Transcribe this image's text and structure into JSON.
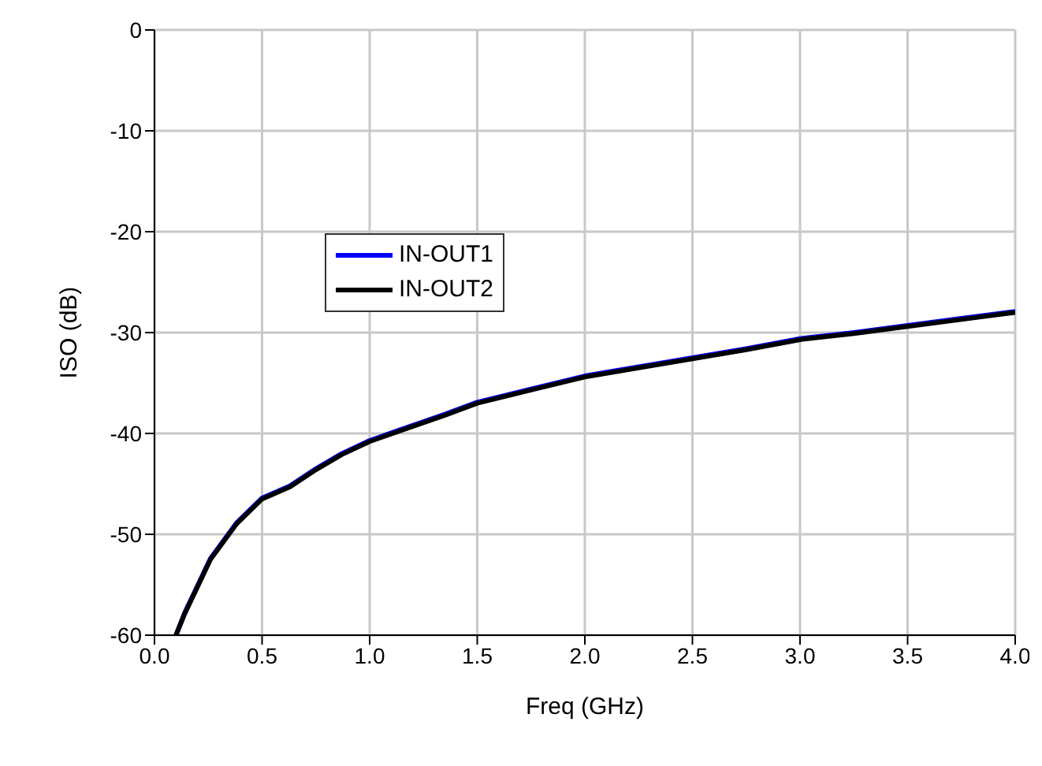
{
  "chart_data": {
    "type": "line",
    "xlabel": "Freq (GHz)",
    "ylabel": "ISO (dB)",
    "x": [
      0.1,
      0.14,
      0.26,
      0.38,
      0.5,
      0.63,
      0.75,
      0.87,
      1.0,
      1.16,
      1.35,
      1.5,
      1.75,
      2.0,
      2.25,
      2.5,
      2.75,
      3.0,
      3.25,
      3.5,
      3.75,
      4.0
    ],
    "series": [
      {
        "name": "IN-OUT1",
        "color": "#0000ff",
        "values": [
          -60,
          -57.8,
          -52.4,
          -48.9,
          -46.4,
          -45.2,
          -43.5,
          -42.0,
          -40.7,
          -39.5,
          -38.1,
          -36.9,
          -35.6,
          -34.3,
          -33.4,
          -32.5,
          -31.6,
          -30.6,
          -30.0,
          -29.3,
          -28.6,
          -27.9
        ]
      },
      {
        "name": "IN-OUT2",
        "color": "#000000",
        "values": [
          -60,
          -57.9,
          -52.5,
          -49.0,
          -46.5,
          -45.3,
          -43.6,
          -42.1,
          -40.8,
          -39.6,
          -38.2,
          -37.0,
          -35.7,
          -34.4,
          -33.5,
          -32.6,
          -31.7,
          -30.7,
          -30.1,
          -29.4,
          -28.7,
          -28.0
        ]
      }
    ],
    "xlim": [
      0,
      4
    ],
    "xticks": [
      {
        "value": 0,
        "label": "0.0"
      },
      {
        "value": 0.5,
        "label": "0.5"
      },
      {
        "value": 1,
        "label": "1.0"
      },
      {
        "value": 1.5,
        "label": "1.5"
      },
      {
        "value": 2,
        "label": "2.0"
      },
      {
        "value": 2.5,
        "label": "2.5"
      },
      {
        "value": 3,
        "label": "3.0"
      },
      {
        "value": 3.5,
        "label": "3.5"
      },
      {
        "value": 4,
        "label": "4.0"
      }
    ],
    "ylim": [
      -60,
      0
    ],
    "yticks": [
      -60,
      -50,
      -40,
      -30,
      -20,
      -10,
      0
    ],
    "grid": true,
    "legend": "top left",
    "marker": "none",
    "line_style": "solid"
  }
}
